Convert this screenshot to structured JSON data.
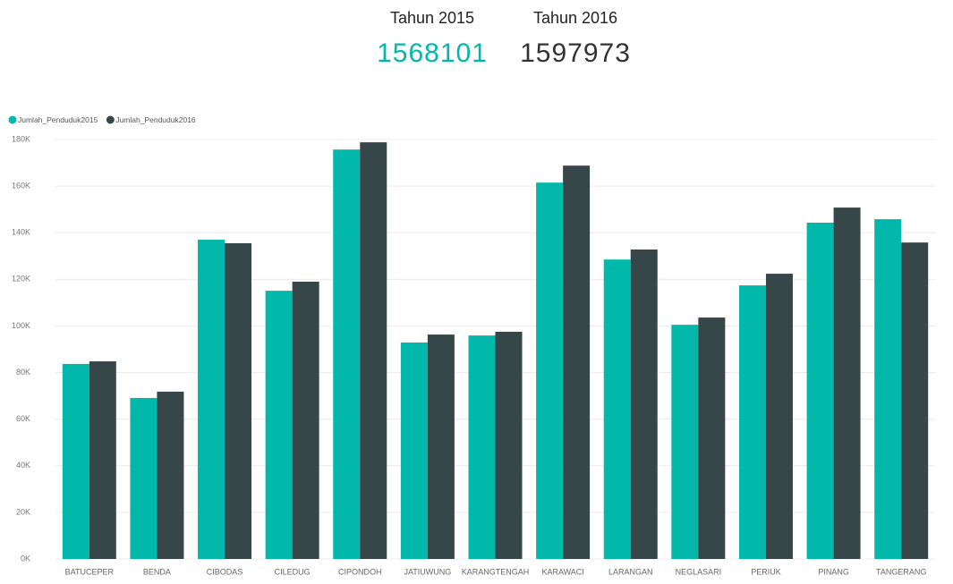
{
  "cards": [
    {
      "title": "Tahun 2015",
      "value": 1568101,
      "color": "#01b8aa"
    },
    {
      "title": "Tahun 2016",
      "value": 1597973,
      "color": "#333333"
    }
  ],
  "chart_data": {
    "type": "bar",
    "categories": [
      "BATUCEPER",
      "BENDA",
      "CIBODAS",
      "CILEDUG",
      "CIPONDOH",
      "JATIUWUNG",
      "KARANGTENGAH",
      "KARAWACI",
      "LARANGAN",
      "NEGLASARI",
      "PERIUK",
      "PINANG",
      "TANGERANG"
    ],
    "series": [
      {
        "name": "Jumlah_Penduduk2015",
        "color": "#01b8aa",
        "values": [
          83700,
          69100,
          137000,
          115100,
          175700,
          92900,
          95900,
          161500,
          128500,
          100500,
          117400,
          144300,
          145800
        ]
      },
      {
        "name": "Jumlah_Penduduk2016",
        "color": "#374649",
        "values": [
          84800,
          71800,
          135500,
          119000,
          178800,
          96300,
          97500,
          168800,
          132800,
          103600,
          122400,
          150800,
          135800
        ]
      }
    ],
    "ylim": [
      0,
      180000
    ],
    "yticks": [
      {
        "value": 0,
        "label": "0K"
      },
      {
        "value": 20000,
        "label": "20K"
      },
      {
        "value": 40000,
        "label": "40K"
      },
      {
        "value": 60000,
        "label": "60K"
      },
      {
        "value": 80000,
        "label": "80K"
      },
      {
        "value": 100000,
        "label": "100K"
      },
      {
        "value": 120000,
        "label": "120K"
      },
      {
        "value": 140000,
        "label": "140K"
      },
      {
        "value": 160000,
        "label": "160K"
      },
      {
        "value": 180000,
        "label": "180K"
      }
    ],
    "grid": true,
    "legend": "top-left"
  }
}
